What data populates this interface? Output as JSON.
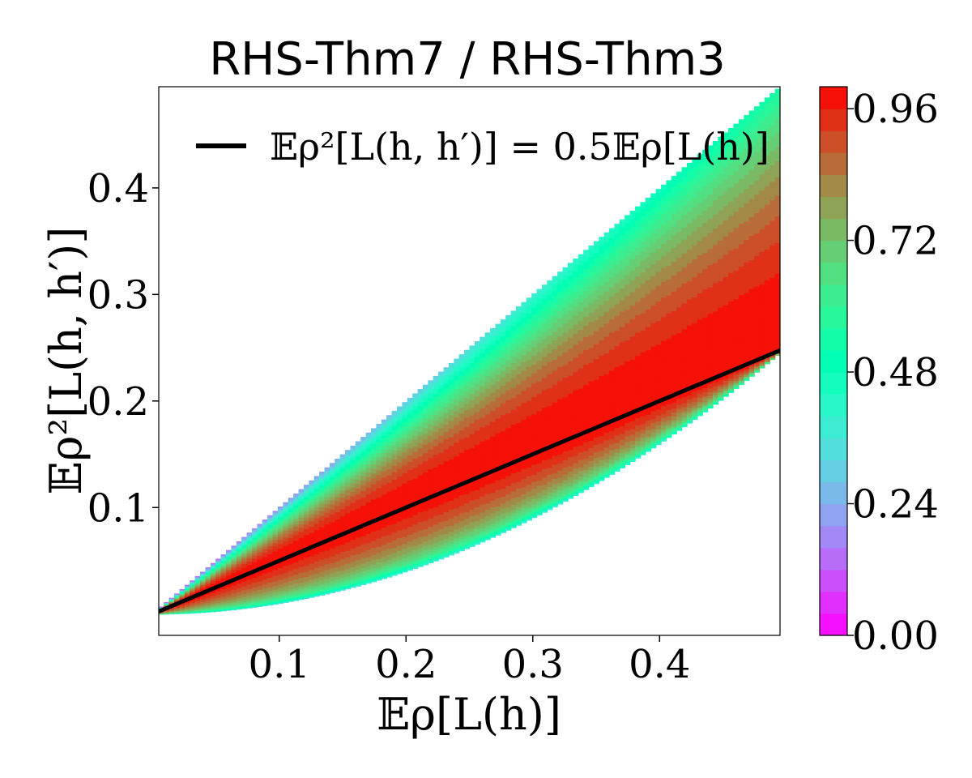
{
  "chart_data": {
    "type": "heatmap",
    "title": "RHS-Thm7 / RHS-Thm3",
    "xlabel": "𝔼ρ[L(h)]",
    "ylabel": "𝔼ρ²[L(h, h′)]",
    "xlim": [
      0.005,
      0.495
    ],
    "ylim": [
      -0.02,
      0.495
    ],
    "xticks": [
      0.1,
      0.2,
      0.3,
      0.4
    ],
    "xtick_labels": [
      "0.1",
      "0.2",
      "0.3",
      "0.4"
    ],
    "yticks": [
      0.1,
      0.2,
      0.3,
      0.4
    ],
    "ytick_labels": [
      "0.1",
      "0.2",
      "0.3",
      "0.4"
    ],
    "grid": false,
    "region": {
      "lower_bound": "y = x^2",
      "upper_bound": "y = x"
    },
    "contour_levels": 25,
    "colormap": "rainbow",
    "colorbar": {
      "min": 0.0,
      "max": 1.0,
      "ticks": [
        0.0,
        0.24,
        0.48,
        0.72,
        0.96
      ],
      "tick_labels": [
        "0.00",
        "0.24",
        "0.48",
        "0.72",
        "0.96"
      ]
    },
    "series": [
      {
        "name": "𝔼ρ²[L(h, h′)] = 0.5𝔼ρ[L(h)]",
        "type": "line",
        "color": "#000000",
        "x": [
          0.005,
          0.495
        ],
        "y": [
          0.0025,
          0.2475
        ]
      }
    ],
    "legend": {
      "position": "top-left",
      "entries": [
        "𝔼ρ²[L(h, h′)] = 0.5𝔼ρ[L(h)]"
      ]
    }
  }
}
